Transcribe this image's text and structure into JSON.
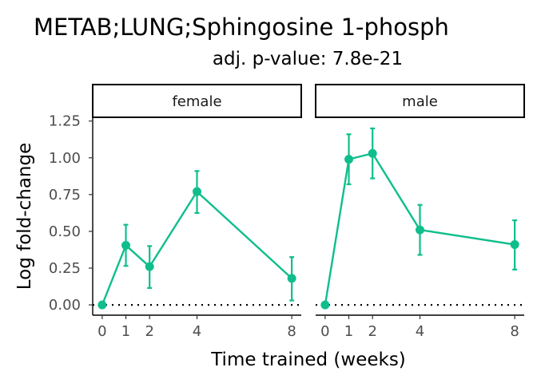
{
  "chart_data": {
    "type": "line",
    "title": "METAB;LUNG;Sphingosine 1-phosph",
    "subtitle": "adj. p-value: 7.8e-21",
    "xlabel": "Time trained (weeks)",
    "ylabel": "Log fold-change",
    "x_ticks": [
      0,
      1,
      2,
      4,
      8
    ],
    "y_ticks": [
      "0.00",
      "0.25",
      "0.50",
      "0.75",
      "1.00",
      "1.25"
    ],
    "ylim": [
      -0.07,
      1.27
    ],
    "xlim": [
      -0.4,
      8.4
    ],
    "reference_line_y": 0,
    "series_color": "#0fbe8c",
    "panels": [
      {
        "name": "female",
        "x": [
          0,
          1,
          2,
          4,
          8
        ],
        "y": [
          0.0,
          0.405,
          0.26,
          0.77,
          0.18
        ],
        "err_low": [
          0.0,
          0.265,
          0.115,
          0.625,
          0.03
        ],
        "err_high": [
          0.0,
          0.545,
          0.4,
          0.91,
          0.325
        ]
      },
      {
        "name": "male",
        "x": [
          0,
          1,
          2,
          4,
          8
        ],
        "y": [
          0.0,
          0.99,
          1.03,
          0.51,
          0.41
        ],
        "err_low": [
          0.0,
          0.82,
          0.86,
          0.34,
          0.24
        ],
        "err_high": [
          0.0,
          1.16,
          1.2,
          0.68,
          0.575
        ]
      }
    ]
  }
}
